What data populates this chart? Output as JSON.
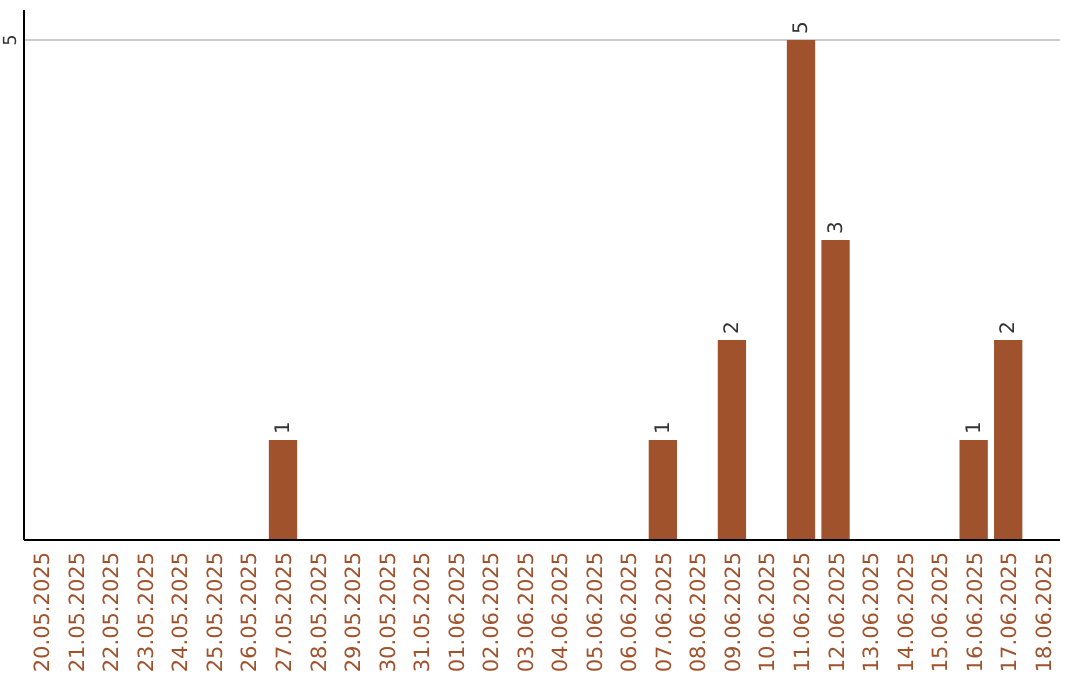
{
  "chart_data": {
    "type": "bar",
    "categories": [
      "20.05.2025",
      "21.05.2025",
      "22.05.2025",
      "23.05.2025",
      "24.05.2025",
      "25.05.2025",
      "26.05.2025",
      "27.05.2025",
      "28.05.2025",
      "29.05.2025",
      "30.05.2025",
      "31.05.2025",
      "01.06.2025",
      "02.06.2025",
      "03.06.2025",
      "04.06.2025",
      "05.06.2025",
      "06.06.2025",
      "07.06.2025",
      "08.06.2025",
      "09.06.2025",
      "10.06.2025",
      "11.06.2025",
      "12.06.2025",
      "13.06.2025",
      "14.06.2025",
      "15.06.2025",
      "16.06.2025",
      "17.06.2025",
      "18.06.2025"
    ],
    "values": [
      0,
      0,
      0,
      0,
      0,
      0,
      0,
      1,
      0,
      0,
      0,
      0,
      0,
      0,
      0,
      0,
      0,
      0,
      1,
      0,
      2,
      0,
      5,
      3,
      0,
      0,
      0,
      1,
      2,
      0
    ],
    "value_labels": [
      null,
      null,
      null,
      null,
      null,
      null,
      null,
      "1",
      null,
      null,
      null,
      null,
      null,
      null,
      null,
      null,
      null,
      null,
      "1",
      null,
      "2",
      null,
      "5",
      "3",
      null,
      null,
      null,
      "1",
      "2",
      null
    ],
    "color": "#a0522d",
    "ylim": [
      0,
      5
    ],
    "yticks": [
      5
    ],
    "ref_lines": [
      {
        "axis": "y",
        "value": 5,
        "color": "#cccccc"
      }
    ]
  }
}
